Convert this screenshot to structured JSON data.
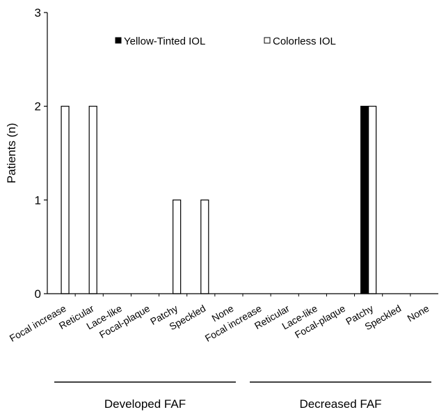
{
  "chart_data": {
    "type": "bar",
    "ylabel": "Patients (n)",
    "ylim": [
      0,
      3
    ],
    "yticks": [
      0,
      1,
      2,
      3
    ],
    "grid": false,
    "legend_position": "top",
    "categories": [
      "Focal increase",
      "Reticular",
      "Lace-like",
      "Focal-plaque",
      "Patchy",
      "Speckled",
      "None",
      "Focal increase",
      "Reticular",
      "Lace-like",
      "Focal-plaque",
      "Patchy",
      "Speckled",
      "None"
    ],
    "groups": [
      {
        "label": "Developed FAF",
        "start": 0,
        "end": 6
      },
      {
        "label": "Decreased FAF",
        "start": 7,
        "end": 13
      }
    ],
    "series": [
      {
        "name": "Yellow-Tinted IOL",
        "color": "#000000",
        "values": [
          0,
          0,
          0,
          0,
          0,
          0,
          0,
          0,
          0,
          0,
          0,
          2,
          0,
          0
        ]
      },
      {
        "name": "Colorless IOL",
        "color": "#ffffff",
        "values": [
          2,
          2,
          0,
          0,
          1,
          1,
          0,
          0,
          0,
          0,
          0,
          2,
          0,
          0
        ]
      }
    ]
  }
}
